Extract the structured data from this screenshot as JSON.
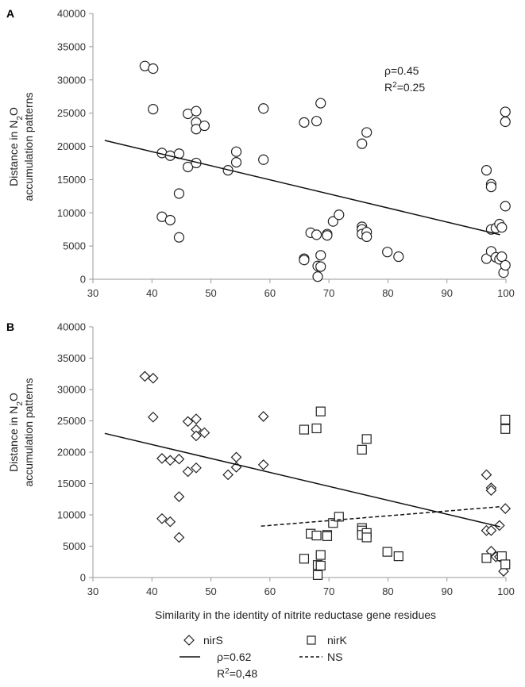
{
  "chart_data": [
    {
      "type": "scatter",
      "panel_label": "A",
      "xlabel": "",
      "ylabel_line1": "Distance in N2O",
      "ylabel_line2": "accumulation patterns",
      "xlim": [
        30,
        100
      ],
      "ylim": [
        0,
        40000
      ],
      "x_ticks": [
        30,
        40,
        50,
        60,
        70,
        80,
        90,
        100
      ],
      "y_ticks": [
        0,
        5000,
        10000,
        15000,
        20000,
        25000,
        30000,
        35000,
        40000
      ],
      "annotation_rho": "ρ=0.45",
      "annotation_r2_prefix": "R",
      "annotation_r2_sup": "2",
      "annotation_r2_value": "=0.25",
      "series": [
        {
          "name": "all",
          "marker": "circle",
          "points": [
            [
              38.8,
              32100
            ],
            [
              40.2,
              31700
            ],
            [
              40.2,
              25600
            ],
            [
              41.7,
              19000
            ],
            [
              41.7,
              9400
            ],
            [
              43.1,
              18600
            ],
            [
              43.1,
              8900
            ],
            [
              44.6,
              18900
            ],
            [
              44.6,
              12900
            ],
            [
              44.6,
              6300
            ],
            [
              46.1,
              24900
            ],
            [
              46.1,
              16900
            ],
            [
              47.5,
              25300
            ],
            [
              47.5,
              23600
            ],
            [
              47.5,
              22600
            ],
            [
              47.5,
              17500
            ],
            [
              48.9,
              23100
            ],
            [
              52.9,
              16400
            ],
            [
              54.3,
              19200
            ],
            [
              54.3,
              17600
            ],
            [
              58.9,
              25700
            ],
            [
              58.9,
              18000
            ],
            [
              65.8,
              23600
            ],
            [
              65.8,
              3100
            ],
            [
              65.8,
              2900
            ],
            [
              66.9,
              7000
            ],
            [
              67.9,
              23800
            ],
            [
              67.9,
              6700
            ],
            [
              68.1,
              2000
            ],
            [
              68.1,
              400
            ],
            [
              68.6,
              26500
            ],
            [
              68.6,
              3600
            ],
            [
              68.6,
              1900
            ],
            [
              69.7,
              6800
            ],
            [
              69.7,
              6600
            ],
            [
              70.7,
              8700
            ],
            [
              71.7,
              9700
            ],
            [
              75.6,
              20400
            ],
            [
              75.6,
              7900
            ],
            [
              75.6,
              7500
            ],
            [
              75.6,
              6800
            ],
            [
              76.4,
              22100
            ],
            [
              76.4,
              7100
            ],
            [
              76.4,
              6400
            ],
            [
              79.9,
              4100
            ],
            [
              81.8,
              3400
            ],
            [
              96.7,
              16400
            ],
            [
              96.7,
              3100
            ],
            [
              97.5,
              14300
            ],
            [
              97.5,
              13900
            ],
            [
              97.5,
              7500
            ],
            [
              97.5,
              4200
            ],
            [
              98.3,
              7700
            ],
            [
              98.3,
              3300
            ],
            [
              98.9,
              8300
            ],
            [
              98.9,
              3000
            ],
            [
              99.3,
              7800
            ],
            [
              99.3,
              3400
            ],
            [
              99.6,
              1000
            ],
            [
              99.9,
              25200
            ],
            [
              99.9,
              23700
            ],
            [
              99.9,
              11000
            ],
            [
              99.9,
              2100
            ]
          ]
        }
      ],
      "trendline": {
        "x": [
          32,
          99
        ],
        "y": [
          20900,
          6700
        ],
        "style": "solid"
      }
    },
    {
      "type": "scatter",
      "panel_label": "B",
      "xlabel": "Similarity in the identity of nitrite reductase gene residues",
      "ylabel_line1": "Distance in N2O",
      "ylabel_line2": "accumulation patterns",
      "xlim": [
        30,
        100
      ],
      "ylim": [
        0,
        40000
      ],
      "x_ticks": [
        30,
        40,
        50,
        60,
        70,
        80,
        90,
        100
      ],
      "y_ticks": [
        0,
        5000,
        10000,
        15000,
        20000,
        25000,
        30000,
        35000,
        40000
      ],
      "series": [
        {
          "name": "nirS",
          "marker": "diamond",
          "points": [
            [
              38.8,
              32100
            ],
            [
              40.2,
              31800
            ],
            [
              40.2,
              25600
            ],
            [
              41.7,
              19000
            ],
            [
              41.7,
              9400
            ],
            [
              43.1,
              18700
            ],
            [
              43.1,
              8900
            ],
            [
              44.6,
              18900
            ],
            [
              44.6,
              12900
            ],
            [
              44.6,
              6400
            ],
            [
              46.1,
              24900
            ],
            [
              46.1,
              16900
            ],
            [
              47.5,
              25300
            ],
            [
              47.5,
              23600
            ],
            [
              47.5,
              22600
            ],
            [
              47.5,
              17500
            ],
            [
              48.9,
              23100
            ],
            [
              52.9,
              16400
            ],
            [
              54.3,
              19200
            ],
            [
              54.3,
              17600
            ],
            [
              58.9,
              25700
            ],
            [
              58.9,
              18000
            ],
            [
              96.7,
              16400
            ],
            [
              96.7,
              7500
            ],
            [
              97.5,
              14300
            ],
            [
              97.5,
              13900
            ],
            [
              97.5,
              7500
            ],
            [
              97.5,
              4200
            ],
            [
              98.3,
              3300
            ],
            [
              98.9,
              8300
            ],
            [
              98.9,
              3300
            ],
            [
              99.6,
              1000
            ],
            [
              99.9,
              11000
            ]
          ]
        },
        {
          "name": "nirK",
          "marker": "square",
          "points": [
            [
              65.8,
              23600
            ],
            [
              65.8,
              3000
            ],
            [
              66.9,
              7000
            ],
            [
              67.9,
              23800
            ],
            [
              67.9,
              6700
            ],
            [
              68.1,
              2000
            ],
            [
              68.1,
              400
            ],
            [
              68.6,
              26500
            ],
            [
              68.6,
              3600
            ],
            [
              68.6,
              1900
            ],
            [
              69.7,
              6800
            ],
            [
              69.7,
              6600
            ],
            [
              70.7,
              8700
            ],
            [
              71.7,
              9700
            ],
            [
              75.6,
              20400
            ],
            [
              75.6,
              7900
            ],
            [
              75.6,
              7500
            ],
            [
              75.6,
              6800
            ],
            [
              76.4,
              22100
            ],
            [
              76.4,
              7100
            ],
            [
              76.4,
              6400
            ],
            [
              79.9,
              4100
            ],
            [
              81.8,
              3400
            ],
            [
              96.7,
              3100
            ],
            [
              99.3,
              3400
            ],
            [
              99.9,
              25200
            ],
            [
              99.9,
              23700
            ],
            [
              99.9,
              2100
            ]
          ]
        }
      ],
      "trendlines": [
        {
          "series": "nirS",
          "x": [
            32,
            99
          ],
          "y": [
            23000,
            8100
          ],
          "style": "solid"
        },
        {
          "series": "nirK",
          "x": [
            58.5,
            99
          ],
          "y": [
            8200,
            11300
          ],
          "style": "dashed"
        }
      ]
    }
  ],
  "legend": {
    "nirS_label": "nirS",
    "nirS_rho": "ρ=0.62",
    "nirS_r2_prefix": "R",
    "nirS_r2_sup": "2",
    "nirS_r2_value": "=0,48",
    "nirK_label": "nirK",
    "nirK_stat": "NS"
  }
}
